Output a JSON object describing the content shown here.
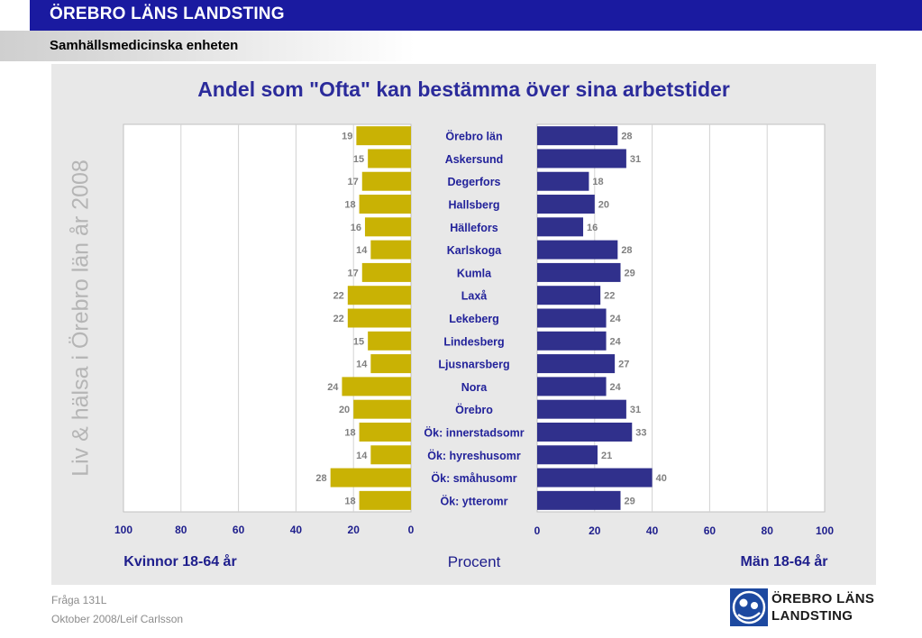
{
  "header": {
    "org": "ÖREBRO LÄNS LANDSTING",
    "unit": "Samhällsmedicinska enheten"
  },
  "side_text": "Liv & hälsa i Örebro län år 2008",
  "footer": {
    "question": "Fråga 131L",
    "date_author": "Oktober 2008/Leif Carlsson"
  },
  "logo": {
    "line1": "ÖREBRO LÄNS",
    "line2": "LANDSTING"
  },
  "colors": {
    "women_bar": "#c9b204",
    "men_bar": "#30308c",
    "title": "#2b2b9b",
    "category_label": "#22229a",
    "value_label": "#808080",
    "header_blue": "#1a1aa0"
  },
  "chart_data": {
    "type": "bar",
    "orientation": "horizontal",
    "layout": "butterfly",
    "title": "Andel som \"Ofta\" kan bestämma över sina arbetstider",
    "xlabel": "Procent",
    "categories": [
      "Örebro län",
      "Askersund",
      "Degerfors",
      "Hallsberg",
      "Hällefors",
      "Karlskoga",
      "Kumla",
      "Laxå",
      "Lekeberg",
      "Lindesberg",
      "Ljusnarsberg",
      "Nora",
      "Örebro",
      "Ök: innerstadsomr",
      "Ök: hyreshusomr",
      "Ök: småhusomr",
      "Ök: ytteromr"
    ],
    "series": [
      {
        "name": "Kvinnor 18-64 år",
        "side": "left",
        "values": [
          19,
          15,
          17,
          18,
          16,
          14,
          17,
          22,
          22,
          15,
          14,
          24,
          20,
          18,
          14,
          28,
          18
        ]
      },
      {
        "name": "Män 18-64 år",
        "side": "right",
        "values": [
          28,
          31,
          18,
          20,
          16,
          28,
          29,
          22,
          24,
          24,
          27,
          24,
          31,
          33,
          21,
          40,
          29
        ]
      }
    ],
    "xlim": [
      0,
      100
    ],
    "left_ticks": [
      "100",
      "80",
      "60",
      "40",
      "20",
      "0"
    ],
    "right_ticks": [
      "0",
      "20",
      "40",
      "60",
      "80",
      "100"
    ],
    "grid": true,
    "show_data_labels": true
  }
}
